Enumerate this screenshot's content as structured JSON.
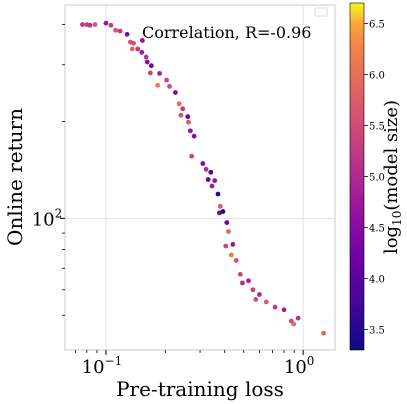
{
  "chart_data": {
    "type": "scatter",
    "title": "",
    "annotation": "Correlation, R=-0.96",
    "xlabel": "Pre-training loss",
    "ylabel": "Online return",
    "xscale": "log",
    "yscale": "log",
    "xlim": [
      0.062,
      1.45
    ],
    "ylim": [
      39,
      460
    ],
    "x_ticks": [
      {
        "value": 0.1,
        "label": "10",
        "exp": "−1"
      },
      {
        "value": 1.0,
        "label": "10",
        "exp": "0"
      }
    ],
    "y_ticks": [
      {
        "value": 100,
        "label": "10",
        "exp": "2"
      }
    ],
    "grid": true,
    "colorbar": {
      "label": "log10(model size)",
      "label_base": "log",
      "label_sub": "10",
      "label_rest": "(model size)",
      "min": 3.3,
      "max": 6.7,
      "ticks": [
        "3.5",
        "4.0",
        "4.5",
        "5.0",
        "5.5",
        "6.0",
        "6.5"
      ],
      "colormap": "plasma"
    },
    "points": [
      {
        "x": 0.076,
        "y": 400,
        "c": 5.2
      },
      {
        "x": 0.08,
        "y": 400,
        "c": 5.4
      },
      {
        "x": 0.083,
        "y": 398,
        "c": 5.1
      },
      {
        "x": 0.088,
        "y": 400,
        "c": 5.6
      },
      {
        "x": 0.1,
        "y": 404,
        "c": 4.7
      },
      {
        "x": 0.106,
        "y": 398,
        "c": 5.3
      },
      {
        "x": 0.112,
        "y": 384,
        "c": 5.6
      },
      {
        "x": 0.118,
        "y": 382,
        "c": 5.2
      },
      {
        "x": 0.128,
        "y": 373,
        "c": 4.4
      },
      {
        "x": 0.133,
        "y": 353,
        "c": 5.6
      },
      {
        "x": 0.138,
        "y": 350,
        "c": 5.5
      },
      {
        "x": 0.136,
        "y": 336,
        "c": 5.9
      },
      {
        "x": 0.145,
        "y": 336,
        "c": 5.2
      },
      {
        "x": 0.153,
        "y": 357,
        "c": 4.6
      },
      {
        "x": 0.152,
        "y": 328,
        "c": 4.7
      },
      {
        "x": 0.16,
        "y": 317,
        "c": 5.1
      },
      {
        "x": 0.162,
        "y": 306,
        "c": 4.6
      },
      {
        "x": 0.17,
        "y": 298,
        "c": 4.3
      },
      {
        "x": 0.168,
        "y": 283,
        "c": 5.4
      },
      {
        "x": 0.187,
        "y": 282,
        "c": 4.8
      },
      {
        "x": 0.183,
        "y": 259,
        "c": 6.1
      },
      {
        "x": 0.203,
        "y": 269,
        "c": 5.5
      },
      {
        "x": 0.21,
        "y": 257,
        "c": 5.5
      },
      {
        "x": 0.225,
        "y": 246,
        "c": 4.5
      },
      {
        "x": 0.235,
        "y": 227,
        "c": 5.9
      },
      {
        "x": 0.24,
        "y": 209,
        "c": 5.6
      },
      {
        "x": 0.245,
        "y": 219,
        "c": 5.3
      },
      {
        "x": 0.26,
        "y": 207,
        "c": 4.2
      },
      {
        "x": 0.262,
        "y": 199,
        "c": 5.7
      },
      {
        "x": 0.268,
        "y": 187,
        "c": 4.6
      },
      {
        "x": 0.28,
        "y": 180,
        "c": 4.5
      },
      {
        "x": 0.272,
        "y": 156,
        "c": 5.4
      },
      {
        "x": 0.31,
        "y": 148,
        "c": 4.4
      },
      {
        "x": 0.322,
        "y": 142,
        "c": 5.1
      },
      {
        "x": 0.34,
        "y": 139,
        "c": 3.8
      },
      {
        "x": 0.33,
        "y": 132,
        "c": 4.1
      },
      {
        "x": 0.345,
        "y": 126,
        "c": 4.8
      },
      {
        "x": 0.356,
        "y": 131,
        "c": 4.6
      },
      {
        "x": 0.37,
        "y": 119,
        "c": 3.5
      },
      {
        "x": 0.38,
        "y": 109,
        "c": 5.7
      },
      {
        "x": 0.376,
        "y": 104,
        "c": 4.4
      },
      {
        "x": 0.392,
        "y": 105,
        "c": 3.4
      },
      {
        "x": 0.41,
        "y": 97,
        "c": 4.2
      },
      {
        "x": 0.418,
        "y": 91,
        "c": 5.9
      },
      {
        "x": 0.405,
        "y": 82,
        "c": 5.4
      },
      {
        "x": 0.44,
        "y": 83,
        "c": 4.7
      },
      {
        "x": 0.432,
        "y": 77,
        "c": 6.1
      },
      {
        "x": 0.458,
        "y": 74,
        "c": 5.6
      },
      {
        "x": 0.48,
        "y": 67,
        "c": 5.4
      },
      {
        "x": 0.492,
        "y": 63,
        "c": 5.0
      },
      {
        "x": 0.528,
        "y": 64,
        "c": 4.9
      },
      {
        "x": 0.556,
        "y": 60,
        "c": 5.3
      },
      {
        "x": 0.575,
        "y": 56,
        "c": 5.5
      },
      {
        "x": 0.6,
        "y": 58,
        "c": 5.0
      },
      {
        "x": 0.65,
        "y": 55,
        "c": 5.7
      },
      {
        "x": 0.72,
        "y": 53,
        "c": 5.2
      },
      {
        "x": 0.8,
        "y": 52,
        "c": 4.8
      },
      {
        "x": 0.87,
        "y": 48,
        "c": 5.5
      },
      {
        "x": 0.895,
        "y": 47,
        "c": 5.9
      },
      {
        "x": 0.943,
        "y": 49,
        "c": 5.1
      },
      {
        "x": 1.27,
        "y": 44,
        "c": 5.8
      }
    ]
  }
}
